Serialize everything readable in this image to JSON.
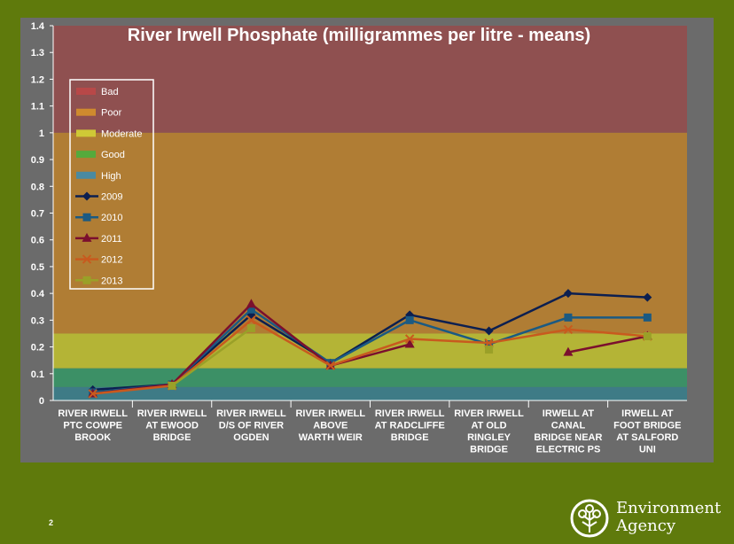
{
  "page": {
    "number": "2"
  },
  "logo": {
    "line1": "Environment",
    "line2": "Agency"
  },
  "chart_data": {
    "type": "line",
    "title": "River Irwell Phosphate (milligrammes per litre - means)",
    "ylim": [
      0,
      1.4
    ],
    "yticks": [
      "0",
      "0.1",
      "0.2",
      "0.3",
      "0.4",
      "0.5",
      "0.6",
      "0.7",
      "0.8",
      "0.9",
      "1",
      "1.1",
      "1.2",
      "1.3",
      "1.4"
    ],
    "categories": [
      "RIVER IRWELL PTC COWPE BROOK",
      "RIVER IRWELL AT EWOOD BRIDGE",
      "RIVER IRWELL D/S OF RIVER OGDEN",
      "RIVER IRWELL ABOVE WARTH WEIR",
      "RIVER IRWELL AT RADCLIFFE BRIDGE",
      "RIVER IRWELL AT OLD RINGLEY BRIDGE",
      "IRWELL AT CANAL BRIDGE NEAR ELECTRIC PS",
      "IRWELL AT FOOT BRIDGE AT SALFORD UNI"
    ],
    "category_lines": [
      [
        "RIVER IRWELL",
        "PTC COWPE",
        "BROOK"
      ],
      [
        "RIVER IRWELL",
        "AT EWOOD",
        "BRIDGE"
      ],
      [
        "RIVER IRWELL",
        "D/S OF RIVER",
        "OGDEN"
      ],
      [
        "RIVER IRWELL",
        "ABOVE",
        "WARTH WEIR"
      ],
      [
        "RIVER IRWELL",
        "AT RADCLIFFE",
        "BRIDGE"
      ],
      [
        "RIVER IRWELL",
        "AT OLD",
        "RINGLEY",
        "BRIDGE"
      ],
      [
        "IRWELL AT",
        "CANAL",
        "BRIDGE NEAR",
        "ELECTRIC PS"
      ],
      [
        "IRWELL AT",
        "FOOT BRIDGE",
        "AT SALFORD",
        "UNI"
      ]
    ],
    "bands": [
      {
        "name": "Bad",
        "from": 1.0,
        "to": 1.4,
        "color": "#8f5050"
      },
      {
        "name": "Poor",
        "from": 0.25,
        "to": 1.0,
        "color": "#b07d34"
      },
      {
        "name": "Moderate",
        "from": 0.12,
        "to": 0.25,
        "color": "#b4b436"
      },
      {
        "name": "Good",
        "from": 0.05,
        "to": 0.12,
        "color": "#3c9066"
      },
      {
        "name": "High",
        "from": 0.0,
        "to": 0.05,
        "color": "#3e7b86"
      }
    ],
    "legend_swatches": {
      "Bad": "#b84848",
      "Poor": "#cf8a2e",
      "Moderate": "#cfc936",
      "Good": "#55aa3c",
      "High": "#4a8aa0"
    },
    "series": [
      {
        "name": "2009",
        "color": "#0c1f50",
        "marker": "diamond",
        "values": [
          0.04,
          0.06,
          0.32,
          0.14,
          0.32,
          0.26,
          0.4,
          0.385
        ]
      },
      {
        "name": "2010",
        "color": "#1b5a82",
        "marker": "square",
        "values": [
          0.03,
          0.06,
          0.34,
          0.14,
          0.3,
          0.21,
          0.31,
          0.31
        ]
      },
      {
        "name": "2011",
        "color": "#7b0f2e",
        "marker": "triangle",
        "values": [
          0.025,
          0.06,
          0.36,
          0.13,
          0.21,
          null,
          0.18,
          0.24
        ]
      },
      {
        "name": "2012",
        "color": "#c85a1e",
        "marker": "x",
        "values": [
          0.025,
          0.055,
          0.3,
          0.13,
          0.23,
          0.215,
          0.265,
          0.24
        ]
      },
      {
        "name": "2013",
        "color": "#9aa028",
        "marker": "square",
        "values": [
          null,
          0.055,
          0.27,
          null,
          null,
          0.19,
          null,
          0.24
        ]
      }
    ],
    "legend": {
      "position": "top-left"
    },
    "grid": false
  }
}
